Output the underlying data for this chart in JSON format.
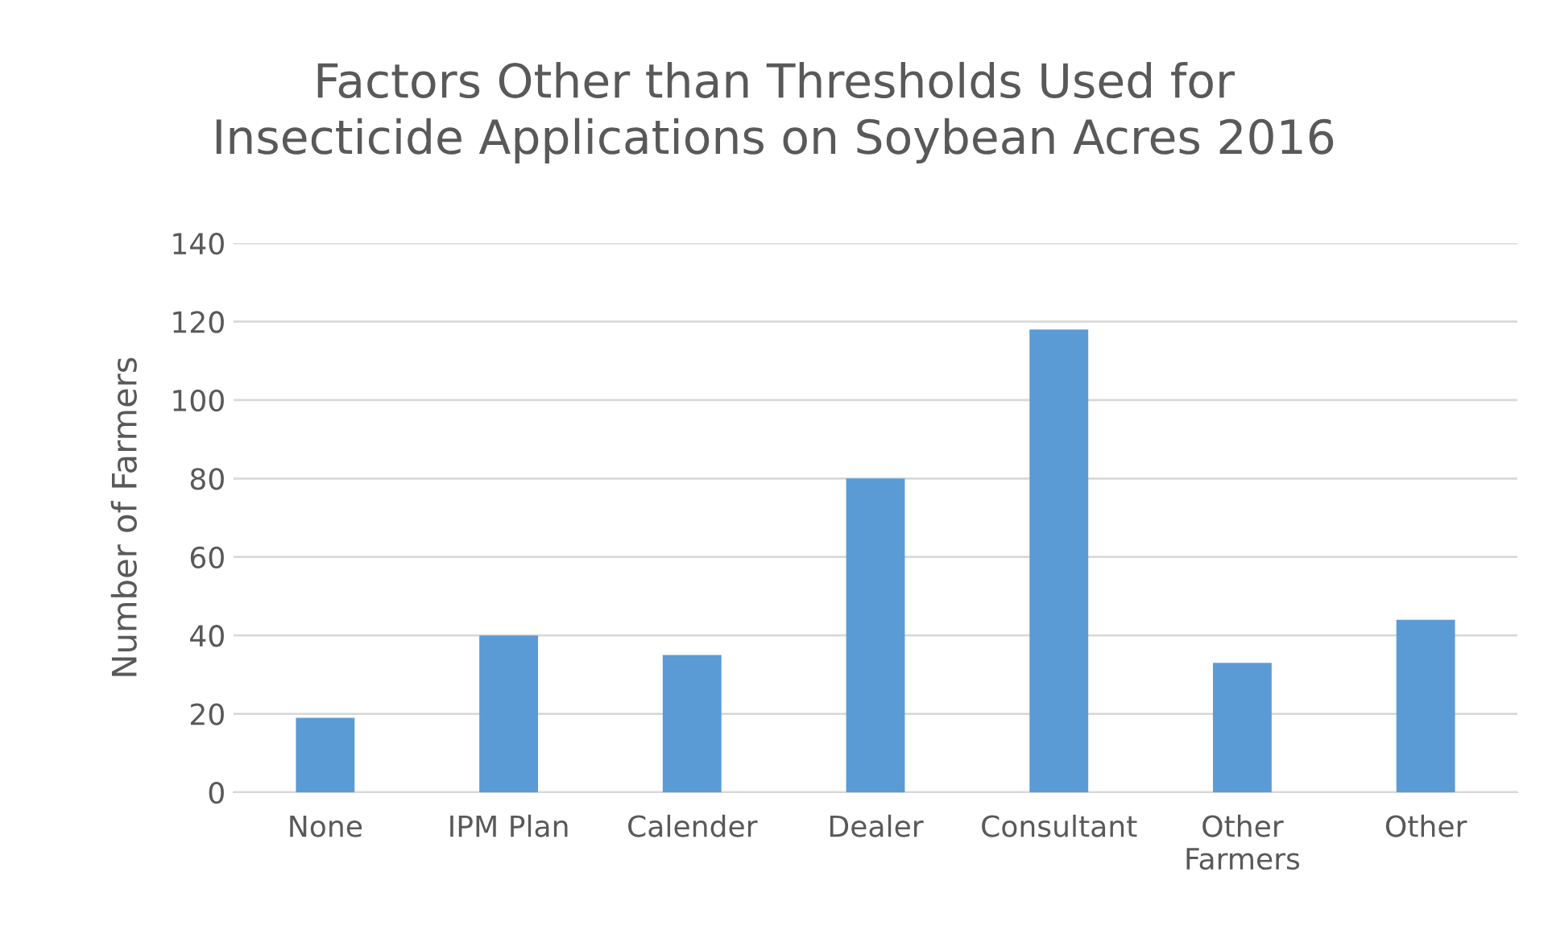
{
  "chart_data": {
    "type": "bar",
    "title": "Factors Other than Thresholds Used for\nInsecticide Applications on Soybean Acres 2016",
    "ylabel": "Number of Farmers",
    "categories": [
      "None",
      "IPM Plan",
      "Calender",
      "Dealer",
      "Consultant",
      "Other\nFarmers",
      "Other"
    ],
    "values": [
      19,
      40,
      35,
      80,
      118,
      33,
      44
    ],
    "color": "#5b9bd5",
    "ylim": [
      0,
      140
    ],
    "yticks": [
      0,
      20,
      40,
      60,
      80,
      100,
      120,
      140
    ],
    "grid": "y"
  }
}
